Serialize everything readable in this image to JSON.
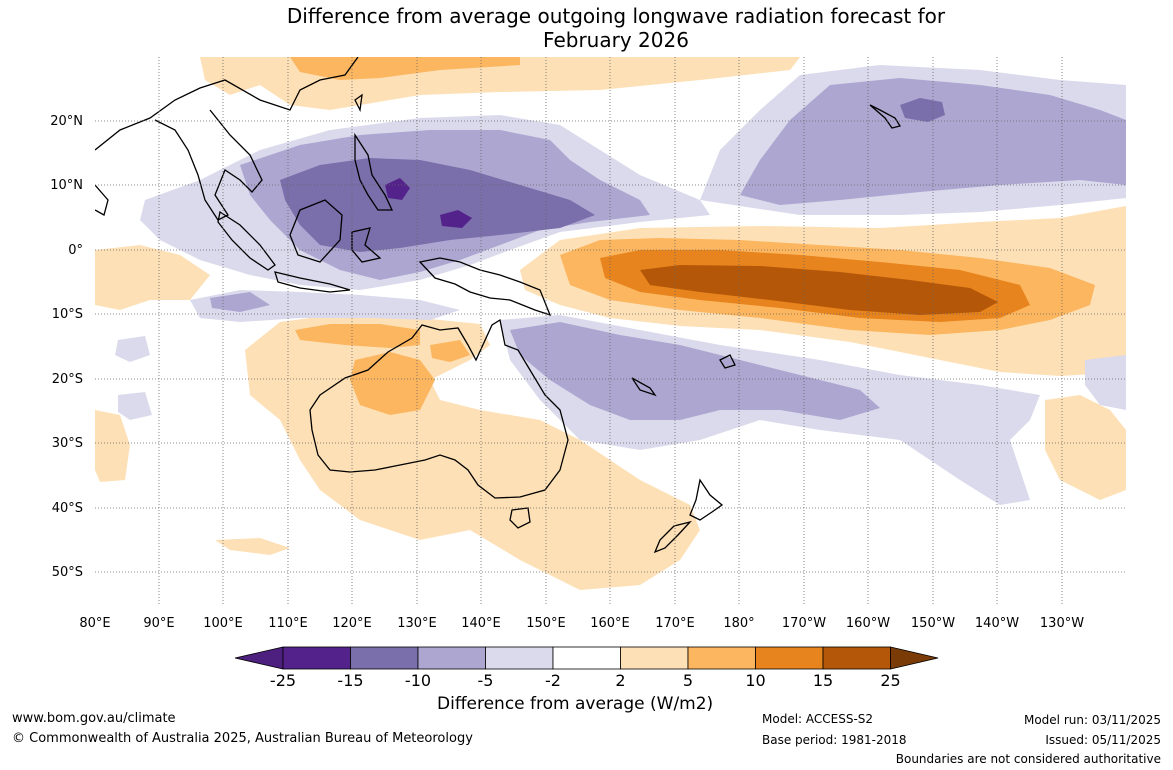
{
  "title": {
    "line1": "Difference from average outgoing longwave radiation forecast for",
    "line2": "February 2026"
  },
  "map": {
    "lat_labels": [
      "20°N",
      "10°N",
      "0°",
      "10°S",
      "20°S",
      "30°S",
      "40°S",
      "50°S"
    ],
    "lon_labels": [
      "80°E",
      "90°E",
      "100°E",
      "110°E",
      "120°E",
      "130°E",
      "140°E",
      "150°E",
      "160°E",
      "170°E",
      "180°",
      "170°W",
      "160°W",
      "150°W",
      "140°W",
      "130°W"
    ]
  },
  "colorbar": {
    "ticks": [
      "-25",
      "-15",
      "-10",
      "-5",
      "-2",
      "2",
      "5",
      "10",
      "15",
      "25"
    ],
    "colors": [
      "#4d1f7e",
      "#53228a",
      "#7a6eab",
      "#aca6d0",
      "#dadaec",
      "#ffffff",
      "#fde0b5",
      "#fcb660",
      "#e7841d",
      "#b45708",
      "#7a3b06"
    ],
    "label": "Difference from average (W/m2)"
  },
  "footer": {
    "website": "www.bom.gov.au/climate",
    "copyright": "© Commonwealth of Australia 2025, Australian Bureau of Meteorology",
    "model": "Model: ACCESS-S2",
    "base_period": "Base period: 1981-2018",
    "model_run": "Model run: 03/11/2025",
    "issued": "Issued: 05/11/2025",
    "disclaimer": "Boundaries are not considered authoritative"
  }
}
